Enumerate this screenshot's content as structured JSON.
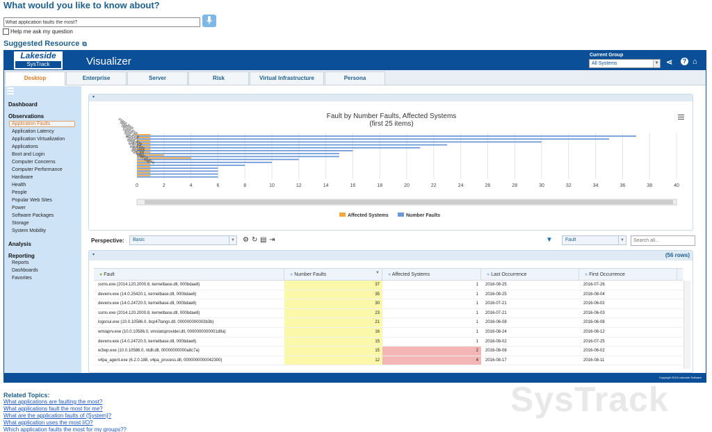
{
  "question": {
    "title": "What would you like to know about?",
    "input_value": "What application faults the most?",
    "ask_label": "Help me ask my question"
  },
  "suggested": {
    "label": "Suggested Resource"
  },
  "header": {
    "logo_top": "Lakeside",
    "logo_bottom": "SysTrack",
    "title": "Visualizer",
    "current_group_label": "Current Group",
    "current_group_value": "All Systems"
  },
  "tabs": [
    "Desktop",
    "Enterprise",
    "Server",
    "Risk",
    "Virtual Infrastructure",
    "Persona"
  ],
  "sidebar": {
    "dashboard": "Dashboard",
    "observations": "Observations",
    "items": [
      "Application Faults",
      "Application Latency",
      "Application Virtualization",
      "Applications",
      "Boot and Login",
      "Computer Concerns",
      "Computer Performance",
      "Hardware",
      "Health",
      "People",
      "Popular Web Sites",
      "Power",
      "Software Packages",
      "Storage",
      "System Mobility"
    ],
    "analysis": "Analysis",
    "reporting": "Reporting",
    "reporting_items": [
      "Reports",
      "Dashboards",
      "Favorites"
    ]
  },
  "chart_data": {
    "type": "bar",
    "orientation": "horizontal",
    "title": "Fault by Number Faults, Affected Systems",
    "subtitle": "(first 25 items)",
    "category_labels_visible": [
      "ssms.exe",
      "devenv.exe",
      "devenv.exe",
      "ssms.exe",
      "logonui.exe",
      "wmiaprv.exe",
      "devenv.exe",
      "w3wp.exe",
      "v4pa_agent.exe",
      "sqlservr.exe"
    ],
    "series": [
      {
        "name": "Affected Systems",
        "color": "#f3a83b",
        "values": [
          1,
          1,
          1,
          1,
          1,
          1,
          1,
          2,
          4,
          1,
          1,
          1,
          1,
          1,
          1
        ]
      },
      {
        "name": "Number Faults",
        "color": "#6b98d9",
        "values": [
          37,
          35,
          30,
          23,
          21,
          16,
          15,
          15,
          12,
          10,
          8,
          6,
          6,
          6,
          6
        ]
      }
    ],
    "x_ticks": [
      0,
      2,
      4,
      6,
      8,
      10,
      12,
      14,
      16,
      18,
      20,
      22,
      24,
      26,
      28,
      30,
      32,
      34,
      36,
      38,
      40
    ],
    "xlim": [
      0,
      40
    ],
    "legend": "bottom"
  },
  "toolbar": {
    "perspective_label": "Perspective:",
    "perspective_value": "Basic",
    "fault_value": "Fault",
    "search_placeholder": "Search all..."
  },
  "grid": {
    "rows_label": "(56 rows)",
    "columns": [
      "Fault",
      "Number Faults",
      "Affected Systems",
      "Last Occurrence",
      "First Occurrence"
    ],
    "rows": [
      [
        "ssms.exe (2014.120.2000.8, kernelbase.dll, 000bdae8)",
        "37",
        "1",
        "2016-08-25",
        "2016-07-26"
      ],
      [
        "devenv.exe (14.0.25420.1, kernelbase.dll, 000bdae8)",
        "35",
        "1",
        "2016-08-25",
        "2016-08-04"
      ],
      [
        "devenv.exe (14.0.24720.0, kernelbase.dll, 000bdae8)",
        "30",
        "1",
        "2016-07-21",
        "2016-06-02"
      ],
      [
        "ssms.exe (2014.120.2000.8, kernelbase.dll, 000bdae8)",
        "23",
        "1",
        "2016-07-21",
        "2016-06-03"
      ],
      [
        "logonui.exe (10.0.10586.0, bcp47langs.dll, 000000000003b3b)",
        "21",
        "1",
        "2016-06-08",
        "2016-06-08"
      ],
      [
        "wmiaprv.exe (10.0.10586.0, vmstatsprovider.dll, 0000000000001d9a)",
        "16",
        "1",
        "2016-08-24",
        "2016-08-12"
      ],
      [
        "devenv.exe (14.0.24720.0, kernelbase.dll, 000bdae8)",
        "15",
        "1",
        "2016-08-02",
        "2016-07-25"
      ],
      [
        "w3wp.exe (10.0.10586.0, ntdll.dll, 00000000000a8c7a)",
        "15",
        "2",
        "2016-08-08",
        "2016-06-02"
      ],
      [
        "v4pa_agent.exe (6.2.0.188, v4pa_process.dll, 0000000000042300)",
        "12",
        "4",
        "2016-08-17",
        "2016-08-11"
      ]
    ]
  },
  "footer": {
    "copyright": "Copyright 2016 Lakeside Software"
  },
  "related": {
    "title": "Related Topics:",
    "links": [
      "What applications are faulting the most?",
      "What applications fault the most for me?",
      "What are the application faults of {System}?",
      "What application uses the most I/O?",
      "Which application faults the most for my groups??"
    ]
  },
  "watermark": "SysTrack"
}
